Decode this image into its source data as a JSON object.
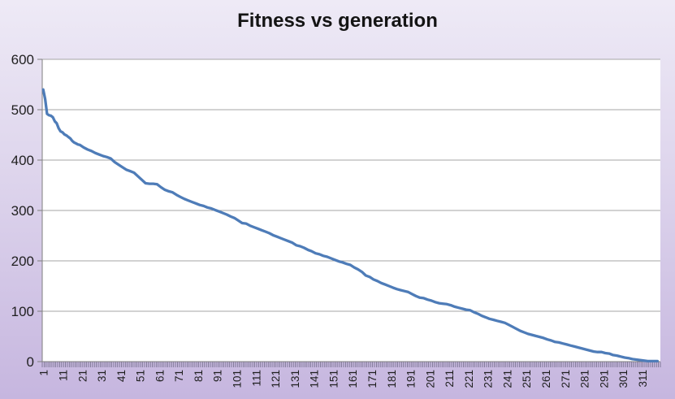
{
  "chart_data": {
    "type": "line",
    "title": "Fitness vs generation",
    "xlabel": "",
    "ylabel": "",
    "legend": "none",
    "grid": "horizontal",
    "ylim": [
      0,
      600
    ],
    "y_ticks": [
      0,
      100,
      200,
      300,
      400,
      500,
      600
    ],
    "x_categories_total": 320,
    "x_tick_labels": [
      "1",
      "11",
      "21",
      "31",
      "41",
      "51",
      "61",
      "71",
      "81",
      "91",
      "101",
      "111",
      "121",
      "131",
      "141",
      "151",
      "161",
      "171",
      "181",
      "191",
      "201",
      "211",
      "221",
      "231",
      "241",
      "251",
      "261",
      "271",
      "281",
      "291",
      "301",
      "311"
    ],
    "series": [
      {
        "points": [
          [
            1,
            540
          ],
          [
            2,
            521
          ],
          [
            3,
            492
          ],
          [
            4,
            489
          ],
          [
            5,
            488
          ],
          [
            6,
            485
          ],
          [
            7,
            477
          ],
          [
            8,
            473
          ],
          [
            9,
            463
          ],
          [
            10,
            457
          ],
          [
            11,
            455
          ],
          [
            12,
            451
          ],
          [
            13,
            449
          ],
          [
            14,
            446
          ],
          [
            15,
            443
          ],
          [
            16,
            438
          ],
          [
            17,
            435
          ],
          [
            18,
            433
          ],
          [
            19,
            431
          ],
          [
            20,
            430
          ],
          [
            22,
            425
          ],
          [
            24,
            421
          ],
          [
            26,
            418
          ],
          [
            28,
            414
          ],
          [
            30,
            411
          ],
          [
            32,
            408
          ],
          [
            34,
            406
          ],
          [
            36,
            403
          ],
          [
            38,
            396
          ],
          [
            40,
            391
          ],
          [
            42,
            386
          ],
          [
            44,
            381
          ],
          [
            46,
            378
          ],
          [
            48,
            375
          ],
          [
            50,
            368
          ],
          [
            52,
            361
          ],
          [
            54,
            354
          ],
          [
            56,
            353
          ],
          [
            58,
            353
          ],
          [
            60,
            352
          ],
          [
            62,
            346
          ],
          [
            64,
            341
          ],
          [
            66,
            338
          ],
          [
            68,
            336
          ],
          [
            70,
            331
          ],
          [
            72,
            327
          ],
          [
            74,
            323
          ],
          [
            76,
            320
          ],
          [
            78,
            317
          ],
          [
            80,
            314
          ],
          [
            82,
            311
          ],
          [
            84,
            309
          ],
          [
            86,
            306
          ],
          [
            88,
            304
          ],
          [
            90,
            301
          ],
          [
            92,
            298
          ],
          [
            94,
            295
          ],
          [
            96,
            292
          ],
          [
            98,
            288
          ],
          [
            100,
            285
          ],
          [
            102,
            280
          ],
          [
            104,
            275
          ],
          [
            106,
            274
          ],
          [
            108,
            270
          ],
          [
            110,
            267
          ],
          [
            112,
            264
          ],
          [
            114,
            261
          ],
          [
            116,
            258
          ],
          [
            118,
            255
          ],
          [
            120,
            251
          ],
          [
            122,
            248
          ],
          [
            124,
            245
          ],
          [
            126,
            242
          ],
          [
            128,
            239
          ],
          [
            130,
            236
          ],
          [
            132,
            231
          ],
          [
            134,
            229
          ],
          [
            136,
            226
          ],
          [
            138,
            222
          ],
          [
            140,
            219
          ],
          [
            142,
            215
          ],
          [
            144,
            213
          ],
          [
            146,
            210
          ],
          [
            148,
            208
          ],
          [
            150,
            205
          ],
          [
            152,
            202
          ],
          [
            154,
            199
          ],
          [
            156,
            197
          ],
          [
            158,
            194
          ],
          [
            160,
            192
          ],
          [
            162,
            187
          ],
          [
            164,
            183
          ],
          [
            166,
            178
          ],
          [
            168,
            171
          ],
          [
            170,
            168
          ],
          [
            172,
            163
          ],
          [
            174,
            160
          ],
          [
            176,
            156
          ],
          [
            178,
            153
          ],
          [
            180,
            150
          ],
          [
            182,
            147
          ],
          [
            184,
            144
          ],
          [
            186,
            142
          ],
          [
            188,
            140
          ],
          [
            190,
            138
          ],
          [
            192,
            134
          ],
          [
            194,
            130
          ],
          [
            196,
            127
          ],
          [
            198,
            126
          ],
          [
            200,
            123
          ],
          [
            202,
            121
          ],
          [
            204,
            118
          ],
          [
            206,
            116
          ],
          [
            208,
            115
          ],
          [
            210,
            114
          ],
          [
            212,
            112
          ],
          [
            214,
            109
          ],
          [
            216,
            107
          ],
          [
            218,
            105
          ],
          [
            220,
            103
          ],
          [
            222,
            102
          ],
          [
            224,
            98
          ],
          [
            226,
            95
          ],
          [
            228,
            91
          ],
          [
            230,
            88
          ],
          [
            232,
            85
          ],
          [
            234,
            83
          ],
          [
            236,
            81
          ],
          [
            238,
            79
          ],
          [
            240,
            77
          ],
          [
            242,
            73
          ],
          [
            244,
            69
          ],
          [
            246,
            65
          ],
          [
            248,
            61
          ],
          [
            250,
            58
          ],
          [
            252,
            55
          ],
          [
            254,
            53
          ],
          [
            256,
            51
          ],
          [
            258,
            49
          ],
          [
            260,
            47
          ],
          [
            262,
            44
          ],
          [
            264,
            42
          ],
          [
            266,
            39
          ],
          [
            268,
            38
          ],
          [
            270,
            36
          ],
          [
            272,
            34
          ],
          [
            274,
            32
          ],
          [
            276,
            30
          ],
          [
            278,
            28
          ],
          [
            280,
            26
          ],
          [
            282,
            24
          ],
          [
            284,
            22
          ],
          [
            286,
            20
          ],
          [
            288,
            19
          ],
          [
            290,
            19
          ],
          [
            292,
            17
          ],
          [
            294,
            16
          ],
          [
            296,
            13
          ],
          [
            298,
            12
          ],
          [
            300,
            10
          ],
          [
            302,
            8
          ],
          [
            304,
            7
          ],
          [
            306,
            5
          ],
          [
            308,
            4
          ],
          [
            310,
            3
          ],
          [
            312,
            2
          ],
          [
            314,
            1
          ],
          [
            316,
            1
          ],
          [
            318,
            1
          ],
          [
            319,
            1
          ]
        ]
      }
    ],
    "colors": {
      "line": "#4E7CB8",
      "gridline": "#A6A6A6",
      "axis": "#7F7F7F",
      "tick": "#6F6A87",
      "plot_bg": "#FFFFFF",
      "bg_top": "#EEEAF6",
      "bg_bottom": "#C6B6DF",
      "title": "#141414",
      "label": "#1F1F1F"
    }
  }
}
